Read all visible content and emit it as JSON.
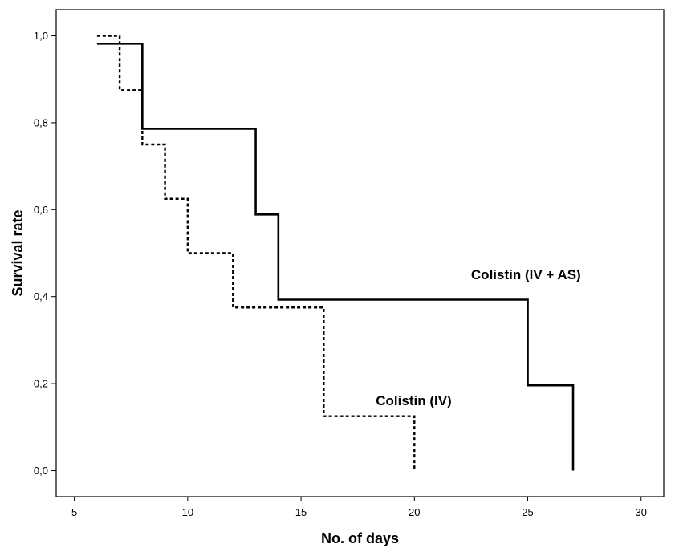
{
  "chart_data": {
    "type": "line",
    "subtype": "step",
    "title": "",
    "xlabel": "No. of days",
    "ylabel": "Survival rate",
    "xlim": [
      4.2,
      31
    ],
    "ylim": [
      -0.06,
      1.06
    ],
    "x_ticks": [
      5,
      10,
      15,
      20,
      25,
      30
    ],
    "y_ticks": [
      0.0,
      0.2,
      0.4,
      0.6,
      0.8,
      1.0
    ],
    "y_tick_labels": [
      "0,0",
      "0,2",
      "0,4",
      "0,6",
      "0,8",
      "1,0"
    ],
    "grid": false,
    "legend": "none",
    "series": [
      {
        "name": "Colistin (IV + AS)",
        "line_style": "solid",
        "color": "#000000",
        "points": [
          [
            6,
            0.982
          ],
          [
            8,
            0.786
          ],
          [
            13,
            0.589
          ],
          [
            14,
            0.393
          ],
          [
            25,
            0.196
          ],
          [
            27,
            0.0
          ]
        ]
      },
      {
        "name": "Colistin (IV)",
        "line_style": "dashed",
        "color": "#000000",
        "points": [
          [
            6,
            1.0
          ],
          [
            7,
            0.875
          ],
          [
            8,
            0.75
          ],
          [
            9,
            0.625
          ],
          [
            10,
            0.5
          ],
          [
            12,
            0.375
          ],
          [
            16,
            0.125
          ],
          [
            20,
            0.0
          ]
        ]
      }
    ],
    "annotations": [
      {
        "text": "Colistin (IV + AS)",
        "x": 22.5,
        "y": 0.44
      },
      {
        "text": "Colistin (IV)",
        "x": 18.3,
        "y": 0.15
      }
    ]
  }
}
